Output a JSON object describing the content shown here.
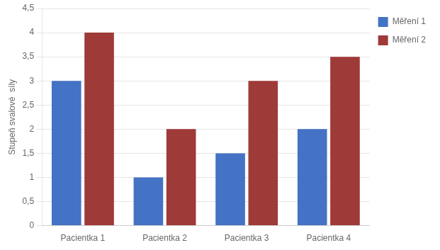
{
  "chart_data": {
    "type": "bar",
    "categories": [
      "Pacientka 1",
      "Pacientka 2",
      "Pacientka 3",
      "Pacientka 4"
    ],
    "series": [
      {
        "name": "Měření 1",
        "color": "#4472C4",
        "values": [
          3.0,
          1.0,
          1.5,
          2.0
        ]
      },
      {
        "name": "Měření 2",
        "color": "#9E3A38",
        "values": [
          4.0,
          2.0,
          3.0,
          3.5
        ]
      }
    ],
    "ylabel": "Stupeň svalové  síly",
    "ylim": [
      0,
      4.5
    ],
    "yticks": [
      0,
      {
        "value": 0.5,
        "label": "0,5"
      },
      1,
      {
        "value": 1.5,
        "label": "1,5"
      },
      2,
      {
        "value": 2.5,
        "label": "2,5"
      },
      3,
      {
        "value": 3.5,
        "label": "3,5"
      },
      4,
      {
        "value": 4.5,
        "label": "4,5"
      }
    ],
    "grid": true,
    "legend": "right"
  }
}
